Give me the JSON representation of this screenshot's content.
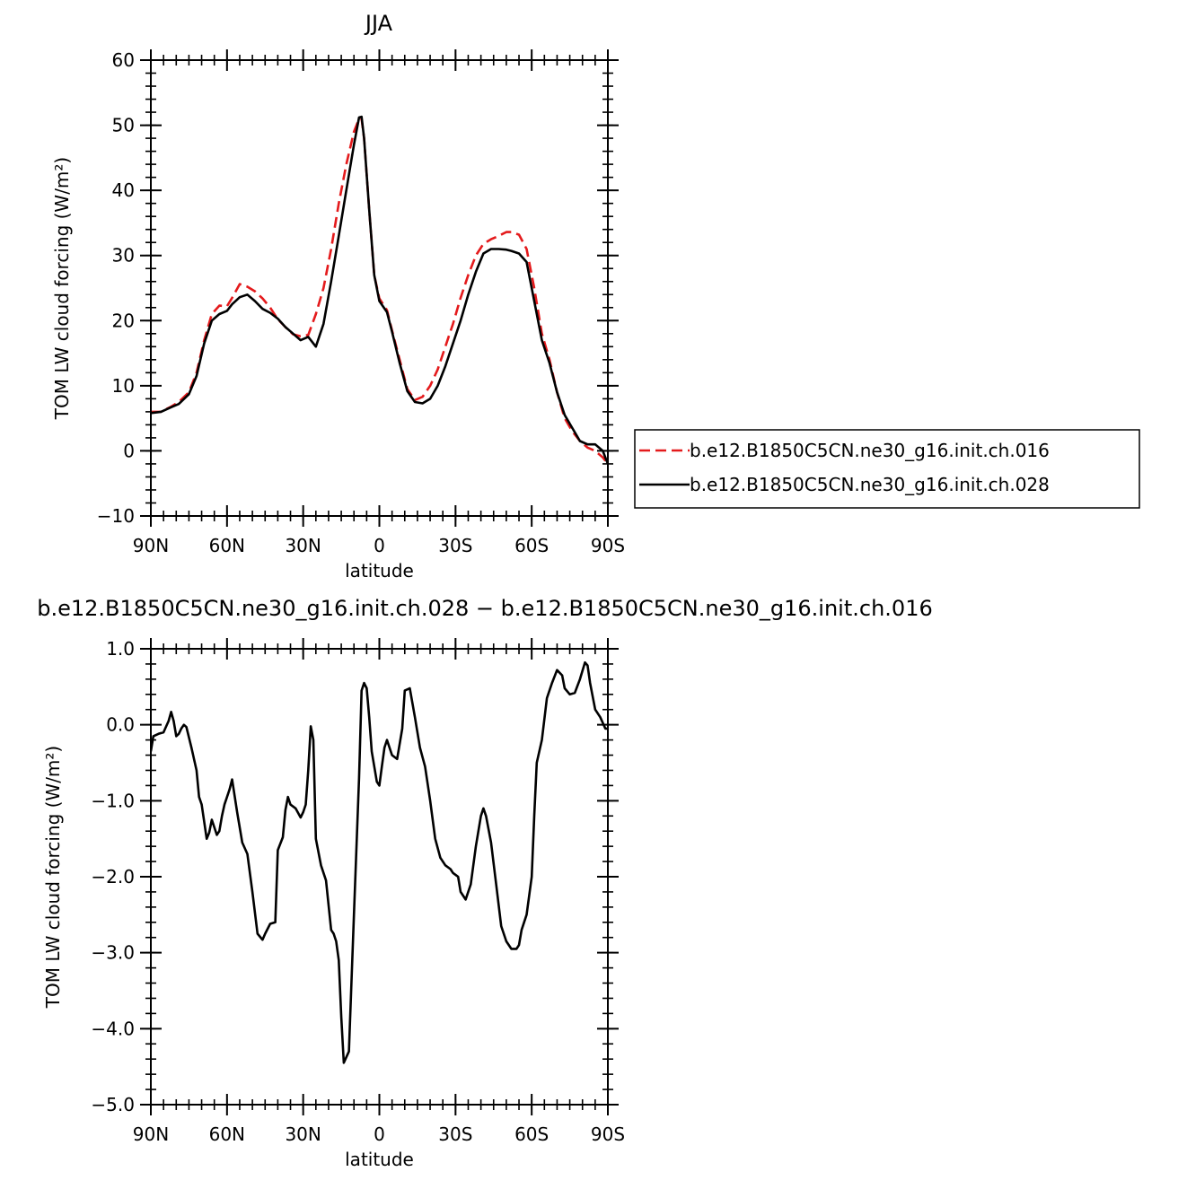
{
  "chart_data": [
    {
      "type": "line",
      "title": "JJA",
      "xlabel": "latitude",
      "ylabel": "TOM LW cloud forcing (W/m²)",
      "xlim": [
        90,
        -90
      ],
      "ylim": [
        -10,
        60
      ],
      "x_ticks": [
        90,
        60,
        30,
        0,
        -30,
        -60,
        -90
      ],
      "x_tick_labels": [
        "90N",
        "60N",
        "30N",
        "0",
        "30S",
        "60S",
        "90S"
      ],
      "y_ticks": [
        -10,
        0,
        10,
        20,
        30,
        40,
        50,
        60
      ],
      "y_tick_labels": [
        "−10",
        "0",
        "10",
        "20",
        "30",
        "40",
        "50",
        "60"
      ],
      "legend_position": "right",
      "series": [
        {
          "name": "b.e12.B1850C5CN.ne30_g16.init.ch.016",
          "color": "#e41a1c",
          "dash": "dashed",
          "x": [
            90,
            86,
            82,
            79,
            75,
            72,
            69,
            66,
            63,
            60,
            58,
            55,
            52,
            49,
            46,
            43,
            40,
            37,
            34,
            31,
            28,
            25,
            22,
            19,
            16,
            13,
            10,
            8,
            7,
            6,
            4,
            2,
            0,
            -3,
            -5,
            -8,
            -11,
            -14,
            -17,
            -20,
            -23,
            -26,
            -29,
            -32,
            -35,
            -38,
            -41,
            -44,
            -47,
            -50,
            -52,
            -55,
            -58,
            -61,
            -64,
            -67,
            -70,
            -73,
            -76,
            -79,
            -82,
            -85,
            -88,
            -90
          ],
          "y": [
            6,
            6,
            6.8,
            7.5,
            9,
            12,
            17,
            21,
            22.3,
            22.2,
            23.5,
            25.6,
            25.2,
            24.5,
            23.4,
            22,
            20.2,
            19,
            17.9,
            17.6,
            17.8,
            21,
            25,
            31,
            38,
            44,
            49,
            51,
            51,
            48,
            37,
            27,
            23.4,
            21.6,
            18.5,
            14,
            9.5,
            7.8,
            8.3,
            10,
            12.5,
            16,
            19.5,
            23.5,
            27,
            30,
            31.8,
            32.5,
            33,
            33.6,
            33.6,
            33.2,
            31,
            25,
            18,
            14,
            9,
            5,
            3,
            1.5,
            0.5,
            0,
            -1,
            -2
          ]
        },
        {
          "name": "b.e12.B1850C5CN.ne30_g16.init.ch.028",
          "color": "#000000",
          "dash": "solid",
          "x": [
            90,
            86,
            82,
            79,
            75,
            72,
            69,
            66,
            63,
            60,
            58,
            55,
            52,
            49,
            46,
            43,
            40,
            37,
            34,
            31,
            28,
            25,
            22,
            19,
            16,
            13,
            10,
            8,
            7,
            6,
            4,
            2,
            0,
            -3,
            -5,
            -8,
            -11,
            -14,
            -17,
            -20,
            -23,
            -26,
            -29,
            -32,
            -35,
            -38,
            -41,
            -44,
            -47,
            -50,
            -52,
            -55,
            -58,
            -61,
            -64,
            -67,
            -70,
            -73,
            -76,
            -79,
            -82,
            -85,
            -88,
            -90
          ],
          "y": [
            5.8,
            6,
            6.7,
            7.2,
            8.7,
            11.5,
            16.5,
            20,
            21,
            21.5,
            22.5,
            23.6,
            24,
            23,
            21.8,
            21.2,
            20.3,
            19,
            18,
            17,
            17.5,
            16,
            19.5,
            26,
            33,
            40,
            47,
            51.2,
            51.3,
            48,
            37,
            27,
            23,
            21.3,
            18.3,
            13.5,
            9.2,
            7.5,
            7.3,
            8,
            10,
            13,
            16.5,
            20,
            24,
            27.5,
            30.3,
            31,
            31,
            30.9,
            30.7,
            30.3,
            29,
            23,
            17,
            13.5,
            9,
            5.5,
            3.5,
            1.5,
            1,
            1,
            0,
            -2
          ]
        }
      ]
    },
    {
      "type": "line",
      "title": "b.e12.B1850C5CN.ne30_g16.init.ch.028 − b.e12.B1850C5CN.ne30_g16.init.ch.016",
      "xlabel": "latitude",
      "ylabel": "TOM LW cloud forcing (W/m²)",
      "xlim": [
        90,
        -90
      ],
      "ylim": [
        -5,
        1
      ],
      "x_ticks": [
        90,
        60,
        30,
        0,
        -30,
        -60,
        -90
      ],
      "x_tick_labels": [
        "90N",
        "60N",
        "30N",
        "0",
        "30S",
        "60S",
        "90S"
      ],
      "y_ticks": [
        -5,
        -4,
        -3,
        -2,
        -1,
        0,
        1
      ],
      "y_tick_labels": [
        "−5.0",
        "−4.0",
        "−3.0",
        "−2.0",
        "−1.0",
        "0.0",
        "1.0"
      ],
      "series": [
        {
          "color": "#000000",
          "x": [
            90,
            89,
            87,
            85,
            83,
            82,
            81,
            80,
            79,
            78,
            77,
            76,
            74,
            72,
            71,
            70,
            68,
            67,
            66,
            64,
            63,
            62,
            61,
            59,
            58,
            56,
            54,
            52,
            50,
            48,
            46,
            45,
            43,
            41,
            40,
            38,
            37,
            36,
            35,
            33,
            31,
            30,
            29,
            28,
            27,
            26,
            25,
            23,
            21,
            19,
            18,
            17,
            16,
            15,
            14,
            12,
            10,
            8,
            7,
            6,
            5,
            4,
            3,
            1,
            0,
            -1,
            -2,
            -3,
            -5,
            -7,
            -9,
            -10,
            -12,
            -14,
            -16,
            -18,
            -20,
            -22,
            -24,
            -26,
            -28,
            -29,
            -31,
            -32,
            -34,
            -36,
            -38,
            -40,
            -41,
            -42,
            -44,
            -46,
            -48,
            -50,
            -52,
            -54,
            -55,
            -56,
            -57,
            -58,
            -60,
            -61,
            -62,
            -64,
            -66,
            -68,
            -70,
            -72,
            -73,
            -75,
            -77,
            -79,
            -81,
            -82,
            -83,
            -85,
            -87,
            -89,
            -90
          ],
          "y": [
            -0.35,
            -0.15,
            -0.12,
            -0.1,
            0.05,
            0.17,
            0.05,
            -0.15,
            -0.12,
            -0.05,
            0,
            -0.03,
            -0.3,
            -0.6,
            -0.95,
            -1.05,
            -1.5,
            -1.42,
            -1.25,
            -1.45,
            -1.4,
            -1.2,
            -1.05,
            -0.85,
            -0.72,
            -1.15,
            -1.55,
            -1.7,
            -2.2,
            -2.75,
            -2.83,
            -2.75,
            -2.62,
            -2.6,
            -1.65,
            -1.48,
            -1.12,
            -0.95,
            -1.05,
            -1.1,
            -1.22,
            -1.15,
            -1.05,
            -0.6,
            -0.02,
            -0.2,
            -1.5,
            -1.85,
            -2.05,
            -2.7,
            -2.75,
            -2.85,
            -3.1,
            -3.85,
            -4.45,
            -4.3,
            -2.5,
            -0.7,
            0.45,
            0.55,
            0.48,
            0.1,
            -0.35,
            -0.75,
            -0.8,
            -0.55,
            -0.3,
            -0.2,
            -0.4,
            -0.45,
            -0.05,
            0.45,
            0.48,
            0.1,
            -0.3,
            -0.55,
            -1.0,
            -1.5,
            -1.75,
            -1.85,
            -1.9,
            -1.95,
            -2.0,
            -2.2,
            -2.3,
            -2.1,
            -1.6,
            -1.2,
            -1.1,
            -1.2,
            -1.55,
            -2.1,
            -2.65,
            -2.85,
            -2.95,
            -2.95,
            -2.9,
            -2.7,
            -2.6,
            -2.5,
            -2.0,
            -1.2,
            -0.5,
            -0.2,
            0.35,
            0.55,
            0.72,
            0.65,
            0.48,
            0.4,
            0.42,
            0.6,
            0.82,
            0.78,
            0.55,
            0.2,
            0.1,
            -0.05,
            -0.05
          ]
        }
      ]
    }
  ]
}
